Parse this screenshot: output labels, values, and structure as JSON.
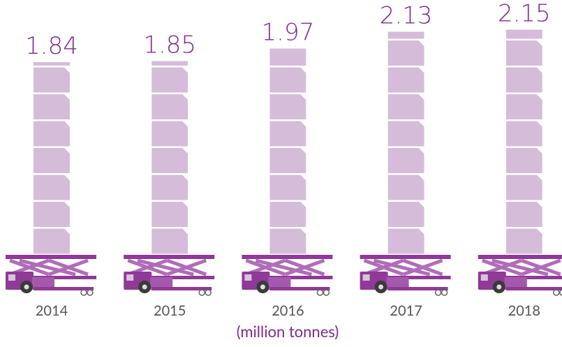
{
  "chart_data": {
    "type": "bar",
    "categories": [
      "2014",
      "2015",
      "2016",
      "2017",
      "2018"
    ],
    "values": [
      1.84,
      1.85,
      1.97,
      2.13,
      2.15
    ],
    "ylabel": "(million tonnes)",
    "color": "#d5bcd9"
  }
}
